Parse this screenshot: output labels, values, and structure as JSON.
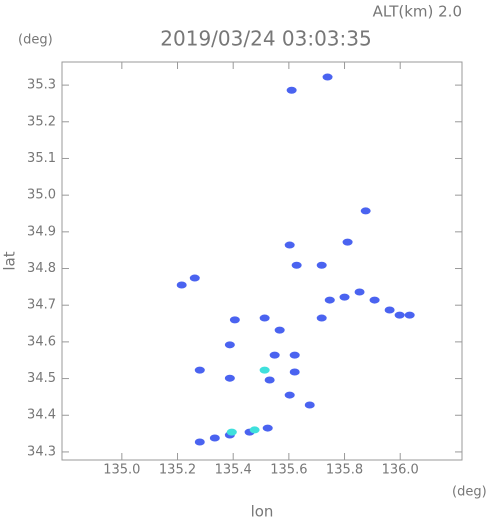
{
  "chart_data": {
    "type": "scatter",
    "title": "2019/03/24 03:03:35",
    "subtitle": "ALT(km) 2.0",
    "x_label": "lon",
    "y_label": "lat",
    "x_unit": "(deg)",
    "y_unit": "(deg)",
    "xlim": [
      134.785,
      136.222
    ],
    "ylim": [
      34.278,
      35.363
    ],
    "xticks": [
      {
        "value": 135.0,
        "label": "135.0"
      },
      135.2,
      135.4,
      135.6,
      135.8,
      {
        "value": 136.0,
        "label": "136.0"
      }
    ],
    "yticks": [
      34.3,
      34.4,
      34.5,
      34.6,
      34.7,
      34.8,
      34.9,
      {
        "value": 35.0,
        "label": "35.0"
      },
      35.1,
      35.2,
      35.3
    ],
    "series": [
      {
        "color": "#4a63f0",
        "x": [
          135.739,
          135.61,
          135.876,
          135.811,
          135.603,
          135.718,
          135.628,
          135.215,
          135.262,
          135.747,
          135.8,
          135.854,
          135.908,
          135.962,
          135.998,
          136.034,
          135.718,
          135.513,
          135.406,
          135.388,
          135.567,
          135.549,
          135.621,
          135.531,
          135.28,
          135.388,
          135.621,
          135.675,
          135.603,
          135.28,
          135.334,
          135.388,
          135.459,
          135.524
        ],
        "values": [
          35.322,
          35.286,
          34.957,
          34.872,
          34.864,
          34.809,
          34.809,
          34.755,
          34.774,
          34.714,
          34.722,
          34.736,
          34.714,
          34.687,
          34.673,
          34.673,
          34.665,
          34.665,
          34.66,
          34.592,
          34.632,
          34.564,
          34.564,
          34.496,
          34.523,
          34.501,
          34.518,
          34.428,
          34.455,
          34.327,
          34.338,
          34.346,
          34.354,
          34.365
        ]
      },
      {
        "color": "#3fe0dc",
        "x": [
          135.395,
          135.477,
          135.513
        ],
        "values": [
          34.354,
          34.36,
          34.523
        ]
      }
    ]
  }
}
